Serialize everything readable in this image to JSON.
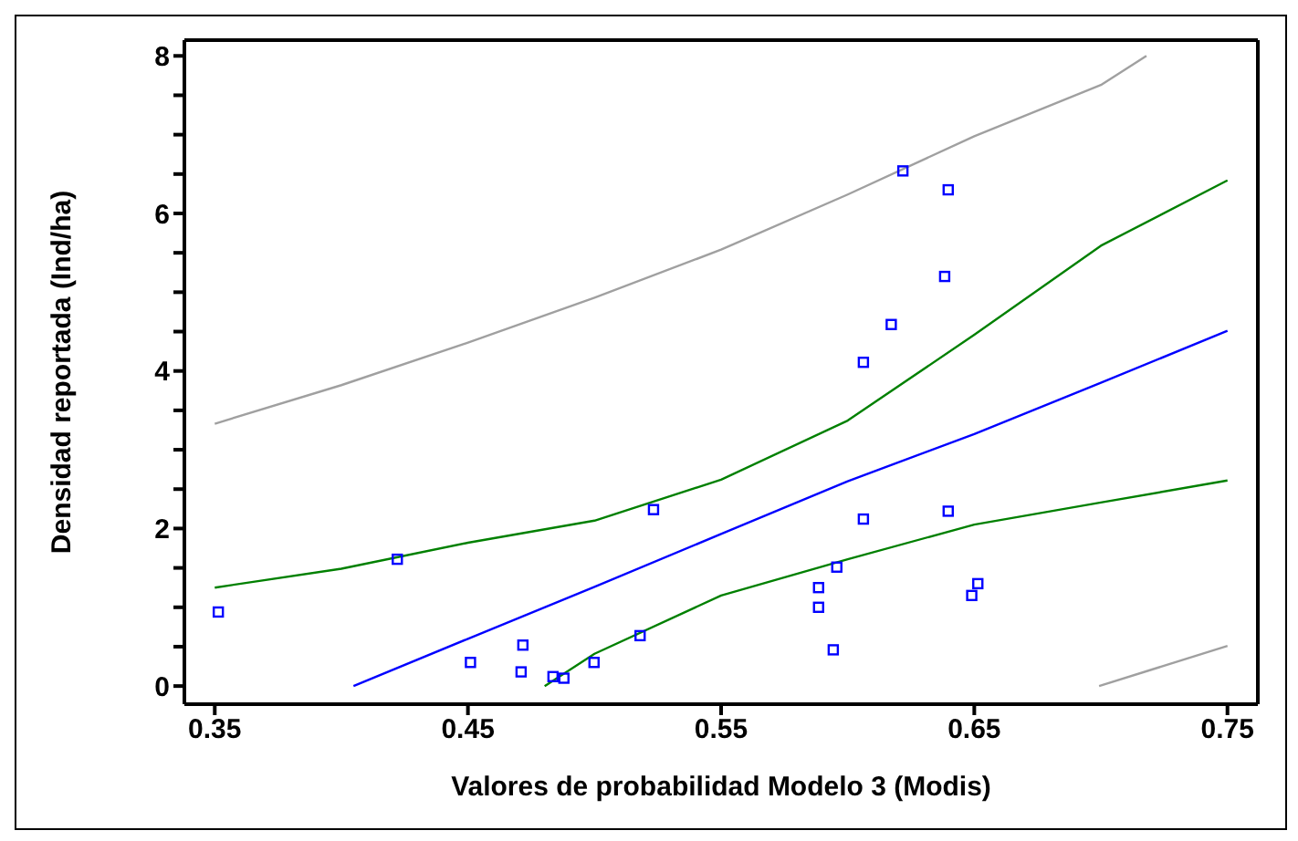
{
  "chart_data": {
    "type": "scatter",
    "xlabel": "Valores de probabilidad Modelo 3 (Modis)",
    "ylabel": "Densidad reportada (Ind/ha)",
    "xlim": [
      0.338,
      0.762
    ],
    "ylim": [
      -0.23,
      8.2
    ],
    "xticks": [
      0.35,
      0.45,
      0.55,
      0.65,
      0.75
    ],
    "yticks": [
      0,
      {
        "value": 0.5,
        "label": null
      },
      {
        "value": 1,
        "label": null
      },
      {
        "value": 1.5,
        "label": null
      },
      2,
      {
        "value": 2.5,
        "label": null
      },
      {
        "value": 3,
        "label": null
      },
      {
        "value": 3.5,
        "label": null
      },
      4,
      {
        "value": 4.5,
        "label": null
      },
      {
        "value": 5,
        "label": null
      },
      {
        "value": 5.5,
        "label": null
      },
      6,
      {
        "value": 6.5,
        "label": null
      },
      {
        "value": 7,
        "label": null
      },
      {
        "value": 7.5,
        "label": null
      },
      8
    ],
    "grid": false,
    "legend": false,
    "series": [
      {
        "marker": "square",
        "color": "#0000ff",
        "x": [
          0.3514,
          0.4221,
          0.451,
          0.471,
          0.4717,
          0.4836,
          0.4879,
          0.4998,
          0.518,
          0.5233,
          0.6218,
          0.6397,
          0.6383,
          0.6172,
          0.6062,
          0.6062,
          0.6397,
          0.5957,
          0.5885,
          0.5885,
          0.5943,
          0.6514,
          0.649
        ],
        "values": [
          0.94,
          1.61,
          0.3,
          0.18,
          0.52,
          0.12,
          0.1,
          0.3,
          0.64,
          2.24,
          6.54,
          6.3,
          5.2,
          4.59,
          4.11,
          2.12,
          2.22,
          1.51,
          1.25,
          1.0,
          0.46,
          1.3,
          1.15
        ]
      },
      {
        "type": "line",
        "marker": "none",
        "line_style": "solid",
        "color": "#0000ff",
        "x": [
          0.4048,
          0.45,
          0.5,
          0.55,
          0.6,
          0.65,
          0.7,
          0.75
        ],
        "values": [
          0,
          0.6,
          1.26,
          1.93,
          2.6,
          3.2,
          3.85,
          4.51
        ]
      },
      {
        "type": "line",
        "marker": "none",
        "line_style": "solid",
        "color": "#008000",
        "x": [
          0.35,
          0.4,
          0.45,
          0.5,
          0.55,
          0.6,
          0.65,
          0.7,
          0.75
        ],
        "values": [
          1.25,
          1.49,
          1.82,
          2.1,
          2.62,
          3.37,
          4.46,
          5.59,
          6.42
        ]
      },
      {
        "type": "line",
        "marker": "none",
        "line_style": "solid",
        "color": "#008000",
        "x": [
          0.4803,
          0.5,
          0.55,
          0.6,
          0.65,
          0.7,
          0.75
        ],
        "values": [
          0,
          0.41,
          1.15,
          1.61,
          2.05,
          2.33,
          2.61
        ]
      },
      {
        "type": "line",
        "marker": "none",
        "line_style": "solid",
        "color": "#a0a0a0",
        "x": [
          0.35,
          0.4,
          0.45,
          0.5,
          0.55,
          0.6,
          0.65,
          0.7,
          0.718
        ],
        "values": [
          3.33,
          3.82,
          4.36,
          4.93,
          5.54,
          6.24,
          6.98,
          7.63,
          8.0
        ]
      },
      {
        "type": "line",
        "marker": "none",
        "line_style": "solid",
        "color": "#a0a0a0",
        "x": [
          0.6993,
          0.75
        ],
        "values": [
          0,
          0.51
        ]
      }
    ]
  }
}
